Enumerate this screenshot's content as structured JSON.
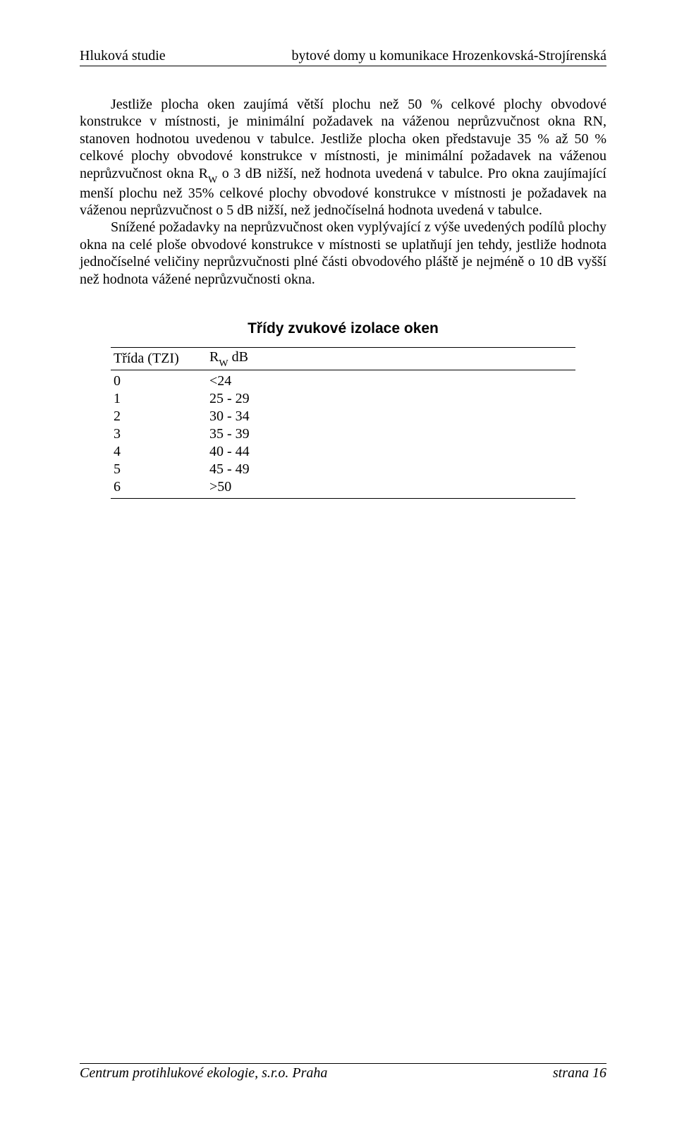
{
  "header": {
    "left": "Hluková studie",
    "right": "bytové domy u komunikace Hrozenkovská-Strojírenská"
  },
  "body": {
    "paragraph1": "Jestliže plocha oken zaujímá větší plochu než 50 % celkové plochy obvodové konstrukce v místnosti, je minimální požadavek na váženou neprůzvučnost okna RN, stanoven hodnotou uvedenou v tabulce. Jestliže plocha oken představuje 35 % až 50 % celkové plochy obvodové konstrukce v místnosti, je minimální požadavek na váženou neprůzvučnost okna R",
    "paragraph1_sub": "W",
    "paragraph1_tail": " o 3 dB nižší, než hodnota uvedená v tabulce. Pro okna zaujímající menší plochu než 35% celkové plochy obvodové konstrukce v místnosti je požadavek na váženou neprůzvučnost o 5 dB nižší, než jednočíselná hodnota uvedená v tabulce.",
    "paragraph2": "Snížené požadavky na neprůzvučnost oken vyplývající z výše uvedených podílů plochy okna na celé ploše obvodové konstrukce v místnosti se uplatňují jen tehdy, jestliže hodnota jednočíselné veličiny neprůzvučnosti plné části obvodového pláště je nejméně o 10 dB vyšší než hodnota vážené neprůzvučnosti okna."
  },
  "section_title": "Třídy zvukové izolace oken",
  "table": {
    "col1_header": "Třída (TZI)",
    "col2_header_prefix": "R",
    "col2_header_sub": "W",
    "col2_header_suffix": " dB",
    "type": "table",
    "columns": [
      "Třída (TZI)",
      "R_W dB"
    ],
    "rows": [
      [
        "0",
        "<24"
      ],
      [
        "1",
        "25 - 29"
      ],
      [
        "2",
        "30 - 34"
      ],
      [
        "3",
        "35 - 39"
      ],
      [
        "4",
        "40 - 44"
      ],
      [
        "5",
        "45 - 49"
      ],
      [
        "6",
        ">50"
      ]
    ],
    "font_size_pt": 15,
    "border_color": "#000000",
    "text_color": "#000000"
  },
  "footer": {
    "left": "Centrum protihlukové ekologie, s.r.o. Praha",
    "page_label": "strana",
    "page_number": "16"
  },
  "style": {
    "background_color": "#ffffff",
    "text_color": "#000000",
    "body_font": "Times New Roman",
    "heading_font": "Arial",
    "body_font_size_pt": 15,
    "heading_font_size_pt": 16
  }
}
